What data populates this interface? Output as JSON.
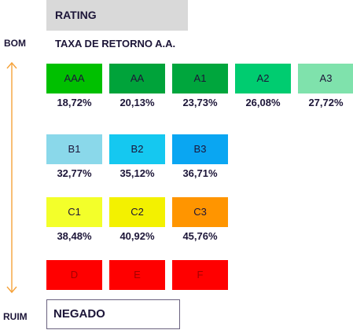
{
  "header": {
    "title": "RATING"
  },
  "subtitle": "TAXA DE RETORNO A.A.",
  "scale": {
    "top_label": "BOM",
    "bottom_label": "RUIM"
  },
  "rows": [
    {
      "items": [
        {
          "code": "AAA",
          "rate": "18,72%",
          "color": "#00c000"
        },
        {
          "code": "AA",
          "rate": "20,13%",
          "color": "#00a33a"
        },
        {
          "code": "A1",
          "rate": "23,73%",
          "color": "#00a63d"
        },
        {
          "code": "A2",
          "rate": "26,08%",
          "color": "#00cc70"
        },
        {
          "code": "A3",
          "rate": "27,72%",
          "color": "#7fe2ac"
        }
      ]
    },
    {
      "items": [
        {
          "code": "B1",
          "rate": "32,77%",
          "color": "#8ad8ea"
        },
        {
          "code": "B2",
          "rate": "35,12%",
          "color": "#15c8f0"
        },
        {
          "code": "B3",
          "rate": "36,71%",
          "color": "#0aa6f2"
        }
      ]
    },
    {
      "items": [
        {
          "code": "C1",
          "rate": "38,48%",
          "color": "#f3ff2a"
        },
        {
          "code": "C2",
          "rate": "40,92%",
          "color": "#f3f100"
        },
        {
          "code": "C3",
          "rate": "45,76%",
          "color": "#ff9500"
        }
      ]
    },
    {
      "items": [
        {
          "code": "D",
          "rate": "",
          "color": "#ff0000"
        },
        {
          "code": "E",
          "rate": "",
          "color": "#ff0000"
        },
        {
          "code": "F",
          "rate": "",
          "color": "#ff0000"
        }
      ]
    }
  ],
  "denied": {
    "label": "NEGADO"
  },
  "colors": {
    "text": "#1c1538",
    "arrow": "#f5a23a",
    "denied_text": "#a40000"
  }
}
